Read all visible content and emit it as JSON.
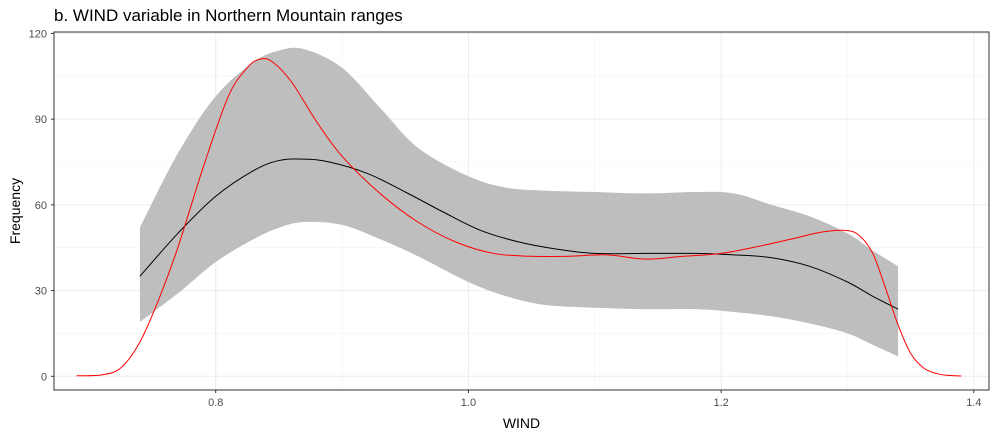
{
  "chart_data": {
    "type": "line",
    "title": "b. WIND variable in Northern Mountain ranges",
    "xlabel": "WIND",
    "ylabel": "Frequency",
    "xlim": [
      0.672,
      1.412
    ],
    "ylim": [
      -4.8,
      120.5
    ],
    "x_ticks": [
      0.8,
      1.0,
      1.2,
      1.4
    ],
    "x_tick_labels": [
      "0.8",
      "1.0",
      "1.2",
      "1.4"
    ],
    "y_ticks": [
      0,
      30,
      60,
      90,
      120
    ],
    "y_tick_labels": [
      "0",
      "30",
      "60",
      "90",
      "120"
    ],
    "grid": true,
    "legend": "none",
    "series": [
      {
        "kind": "band",
        "color": "#bebebe",
        "x": [
          0.74,
          0.77,
          0.8,
          0.83,
          0.85,
          0.87,
          0.9,
          0.93,
          0.96,
          1.0,
          1.03,
          1.06,
          1.1,
          1.14,
          1.18,
          1.21,
          1.24,
          1.27,
          1.3,
          1.32,
          1.34
        ],
        "upper": [
          52,
          78,
          98,
          110,
          114,
          114.5,
          108,
          94,
          80,
          70,
          66,
          65,
          64.5,
          64,
          64.5,
          64,
          60,
          56,
          50,
          44,
          38.5
        ],
        "lower": [
          19,
          29,
          40,
          48,
          52,
          54,
          53,
          48,
          42,
          33,
          28,
          25,
          24,
          23.5,
          23.5,
          22.5,
          21,
          18.5,
          15,
          11,
          7
        ]
      },
      {
        "kind": "line",
        "color": "#000000",
        "x": [
          0.74,
          0.77,
          0.8,
          0.83,
          0.85,
          0.87,
          0.89,
          0.92,
          0.95,
          0.98,
          1.01,
          1.04,
          1.07,
          1.1,
          1.14,
          1.18,
          1.21,
          1.24,
          1.27,
          1.3,
          1.32,
          1.34
        ],
        "y": [
          35,
          50,
          63,
          72,
          75.5,
          76,
          75,
          71,
          64.5,
          57.5,
          51,
          47,
          44.5,
          43,
          43,
          43,
          42.5,
          41.5,
          38.5,
          33,
          28,
          23.5
        ]
      },
      {
        "kind": "line",
        "color": "#ff0000",
        "x": [
          0.69,
          0.71,
          0.725,
          0.74,
          0.755,
          0.77,
          0.79,
          0.81,
          0.825,
          0.835,
          0.845,
          0.86,
          0.88,
          0.9,
          0.93,
          0.96,
          0.99,
          1.02,
          1.05,
          1.08,
          1.11,
          1.14,
          1.17,
          1.2,
          1.23,
          1.26,
          1.28,
          1.3,
          1.31,
          1.32,
          1.33,
          1.34,
          1.35,
          1.36,
          1.37,
          1.38,
          1.39
        ],
        "y": [
          0.2,
          0.5,
          3,
          12,
          27,
          45,
          73,
          98,
          108,
          111,
          110,
          103,
          89,
          77,
          64,
          54,
          47,
          43,
          42,
          42,
          42.5,
          41,
          42,
          43,
          45.5,
          48.5,
          50.5,
          51,
          49,
          43,
          31,
          18,
          8,
          3,
          1,
          0.3,
          0.1
        ]
      }
    ]
  }
}
